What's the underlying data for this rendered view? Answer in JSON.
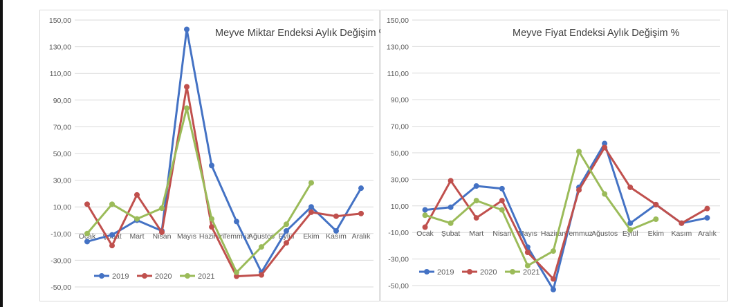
{
  "chart_data": [
    {
      "type": "line",
      "title": "Meyve Miktar Endeksi Aylık Değişim %",
      "categories": [
        "Ocak",
        "Şubat",
        "Mart",
        "Nisan",
        "Mayıs",
        "Haziran",
        "Temmuz",
        "Ağustos",
        "Eylül",
        "Ekim",
        "Kasım",
        "Aralık"
      ],
      "ylim": [
        -50,
        150
      ],
      "yticks": [
        "150,00",
        "130,00",
        "110,00",
        "90,00",
        "70,00",
        "50,00",
        "30,00",
        "10,00",
        "-10,00",
        "-30,00",
        "-50,00"
      ],
      "series": [
        {
          "name": "2019",
          "color": "#4472C4",
          "values": [
            -16,
            -11,
            0,
            -8,
            143,
            41,
            -1,
            -39,
            -8,
            10,
            -8,
            24
          ]
        },
        {
          "name": "2020",
          "color": "#C0504D",
          "values": [
            12,
            -19,
            19,
            -9,
            100,
            -5,
            -42,
            -41,
            -17,
            6,
            3,
            5
          ]
        },
        {
          "name": "2021",
          "color": "#9BBB59",
          "values": [
            -10,
            12,
            1,
            9,
            84,
            1,
            -39,
            -20,
            -3,
            28,
            null,
            null
          ]
        }
      ],
      "legend": "bottom-left",
      "grid": true
    },
    {
      "type": "line",
      "title": "Meyve Fiyat Endeksi Aylık Değişim %",
      "categories": [
        "Ocak",
        "Şubat",
        "Mart",
        "Nisan",
        "Mayıs",
        "Haziran",
        "Temmuz",
        "Ağustos",
        "Eylül",
        "Ekim",
        "Kasım",
        "Aralık"
      ],
      "ylim": [
        -50,
        150
      ],
      "yticks": [
        "150,00",
        "130,00",
        "110,00",
        "90,00",
        "70,00",
        "50,00",
        "30,00",
        "10,00",
        "-10,00",
        "-30,00",
        "-50,00"
      ],
      "series": [
        {
          "name": "2019",
          "color": "#4472C4",
          "values": [
            7,
            9,
            25,
            23,
            -21,
            -53,
            24,
            57,
            -3,
            11,
            -3,
            1
          ]
        },
        {
          "name": "2020",
          "color": "#C0504D",
          "values": [
            -6,
            29,
            1,
            14,
            -25,
            -45,
            22,
            54,
            24,
            11,
            -3,
            8
          ]
        },
        {
          "name": "2021",
          "color": "#9BBB59",
          "values": [
            3,
            -3,
            14,
            7,
            -35,
            -24,
            51,
            19,
            -8,
            0,
            null,
            null
          ]
        }
      ],
      "legend": "bottom-left",
      "grid": true
    }
  ]
}
